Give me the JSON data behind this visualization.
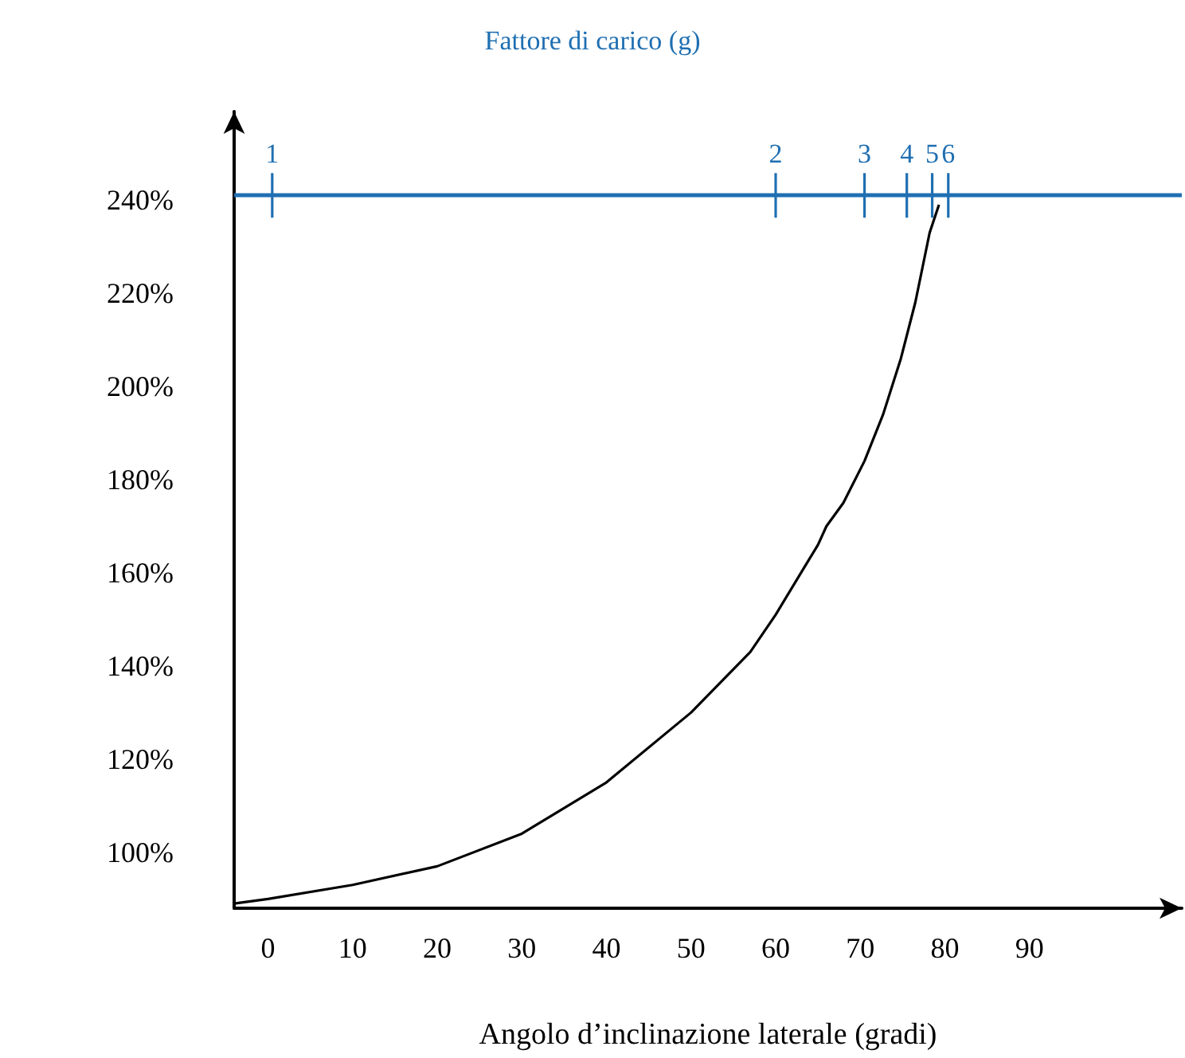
{
  "chart_data": {
    "type": "line",
    "title": "Fattore di carico (g)",
    "xlabel": "Angolo d’inclinazione laterale (gradi)",
    "x": [
      -4,
      0,
      10,
      20,
      30,
      40,
      50,
      57,
      60,
      63,
      65,
      66,
      68,
      70.5,
      72.7,
      74.8,
      76.5,
      78.2,
      79.3
    ],
    "series": [
      {
        "color": "#000000",
        "values": [
          89,
          90,
          93,
          97,
          104,
          115,
          130,
          143,
          151,
          160,
          166,
          170,
          175,
          184,
          194,
          206,
          218,
          233,
          239
        ]
      }
    ],
    "xlim": [
      -4,
      108
    ],
    "xticks": [
      0,
      10,
      20,
      30,
      40,
      50,
      60,
      70,
      80,
      90
    ],
    "ylim": [
      88,
      259
    ],
    "yticks": [
      {
        "value": 100,
        "label": "100%"
      },
      {
        "value": 120,
        "label": "120%"
      },
      {
        "value": 140,
        "label": "140%"
      },
      {
        "value": 160,
        "label": "160%"
      },
      {
        "value": 180,
        "label": "180%"
      },
      {
        "value": 200,
        "label": "200%"
      },
      {
        "value": 220,
        "label": "220%"
      },
      {
        "value": 240,
        "label": "240%"
      }
    ],
    "ref_lines": [
      {
        "axis": "y",
        "value": 241,
        "color": "#1f6fb2"
      }
    ],
    "annotations": [
      {
        "text": "1",
        "x": 0.5,
        "y": 241
      },
      {
        "text": "2",
        "x": 60,
        "y": 241
      },
      {
        "text": "3",
        "x": 70.5,
        "y": 241
      },
      {
        "text": "4",
        "x": 75.5,
        "y": 241
      },
      {
        "text": "5",
        "x": 78.5,
        "y": 241
      },
      {
        "text": "6",
        "x": 80.4,
        "y": 241
      }
    ],
    "grid": false,
    "marker": "none",
    "line_style": "solid"
  }
}
